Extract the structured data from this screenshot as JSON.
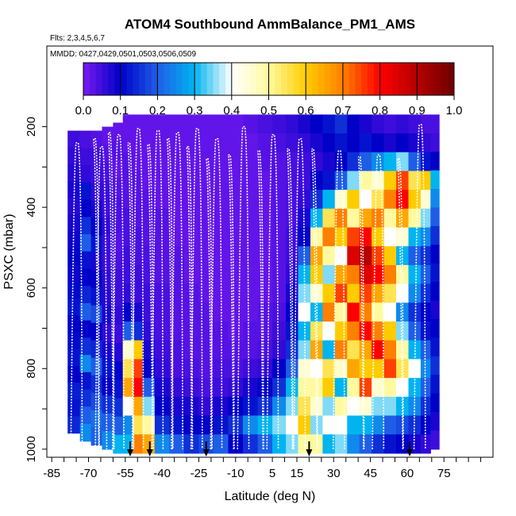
{
  "chart_data": {
    "type": "heatmap",
    "title": "ATOM4 Southbound AmmBalance_PM1_AMS",
    "subtitle_flights": "Flts: 2,3,4,5,6,7",
    "subtitle_dates": "MMDD: 0427,0429,0501,0503,0506,0509",
    "xlabel": "Latitude (deg N)",
    "ylabel": "PSXC (mbar)",
    "xlim": [
      -87,
      95
    ],
    "ylim": [
      1020,
      0
    ],
    "x_ticks": [
      -85,
      -70,
      -55,
      -40,
      -25,
      -10,
      5,
      15,
      30,
      45,
      60,
      75
    ],
    "x_tick_labels": [
      "-85",
      "-70",
      "-55",
      "-40",
      "-25",
      "-10",
      "5",
      "15",
      "30",
      "45",
      "60",
      "75"
    ],
    "y_ticks": [
      200,
      400,
      600,
      800,
      1000
    ],
    "y_tick_labels": [
      "200",
      "400",
      "600",
      "800",
      "1000"
    ],
    "colorbar": {
      "min": 0.0,
      "max": 1.0,
      "ticks": [
        0.0,
        0.1,
        0.2,
        0.3,
        0.4,
        0.5,
        0.6,
        0.7,
        0.8,
        0.9,
        1.0
      ],
      "tick_labels": [
        "0.0",
        "0.1",
        "0.2",
        "0.3",
        "0.4",
        "0.5",
        "0.6",
        "0.7",
        "0.8",
        "0.9",
        "1.0"
      ],
      "colors": [
        "#7a1af0",
        "#0000c8",
        "#1e5ee6",
        "#00b4f0",
        "#ffffff",
        "#fffaa0",
        "#ffcc00",
        "#ff8000",
        "#ff0000",
        "#b40000",
        "#6e0000"
      ]
    },
    "arrows_latitude": [
      -53,
      -45,
      -22,
      20,
      61
    ],
    "profiles": [
      {
        "lat": -75,
        "top": 240
      },
      {
        "lat": -68,
        "top": 230
      },
      {
        "lat": -65,
        "top": 250
      },
      {
        "lat": -62,
        "top": 215
      },
      {
        "lat": -58,
        "top": 220
      },
      {
        "lat": -54,
        "top": 240
      },
      {
        "lat": -50,
        "top": 205
      },
      {
        "lat": -46,
        "top": 245
      },
      {
        "lat": -42,
        "top": 210
      },
      {
        "lat": -38,
        "top": 230
      },
      {
        "lat": -34,
        "top": 215
      },
      {
        "lat": -30,
        "top": 250
      },
      {
        "lat": -26,
        "top": 205
      },
      {
        "lat": -22,
        "top": 280
      },
      {
        "lat": -18,
        "top": 230
      },
      {
        "lat": -13,
        "top": 270
      },
      {
        "lat": -7,
        "top": 200
      },
      {
        "lat": -1,
        "top": 260
      },
      {
        "lat": 5,
        "top": 220
      },
      {
        "lat": 11,
        "top": 255
      },
      {
        "lat": 16,
        "top": 230
      },
      {
        "lat": 21,
        "top": 255
      },
      {
        "lat": 32,
        "top": 260
      },
      {
        "lat": 40,
        "top": 275
      },
      {
        "lat": 48,
        "top": 270
      },
      {
        "lat": 56,
        "top": 280
      },
      {
        "lat": 65,
        "top": 195
      }
    ],
    "columns": [
      {
        "lat": -76,
        "top": 210,
        "bottom": 960,
        "values": [
          0.05,
          0.06,
          0.07,
          0.08,
          0.07,
          0.08,
          0.09,
          0.1,
          0.09,
          0.11,
          0.12,
          0.1,
          0.11,
          0.12,
          0.1,
          0.13,
          0.12,
          0.14
        ]
      },
      {
        "lat": -71,
        "top": 210,
        "bottom": 980,
        "values": [
          0.04,
          0.05,
          0.06,
          0.12,
          0.1,
          0.15,
          0.2,
          0.12,
          0.1,
          0.14,
          0.2,
          0.1,
          0.15,
          0.25,
          0.12,
          0.15,
          0.2,
          0.25
        ]
      },
      {
        "lat": -67,
        "top": 210,
        "bottom": 990,
        "values": [
          0.03,
          0.05,
          0.05,
          0.06,
          0.08,
          0.1,
          0.12,
          0.08,
          0.1,
          0.12,
          0.18,
          0.1,
          0.14,
          0.2,
          0.15,
          0.18,
          0.22,
          0.2
        ]
      },
      {
        "lat": -62,
        "top": 200,
        "bottom": 1000,
        "values": [
          0.02,
          0.03,
          0.04,
          0.05,
          0.05,
          0.06,
          0.05,
          0.05,
          0.06,
          0.07,
          0.08,
          0.06,
          0.08,
          0.12,
          0.1,
          0.15,
          0.2,
          0.25
        ]
      },
      {
        "lat": -58,
        "top": 190,
        "bottom": 1010,
        "values": [
          0.02,
          0.03,
          0.02,
          0.03,
          0.04,
          0.04,
          0.03,
          0.04,
          0.05,
          0.05,
          0.06,
          0.05,
          0.07,
          0.1,
          0.12,
          0.15,
          0.2,
          0.3
        ]
      },
      {
        "lat": -54,
        "top": 170,
        "bottom": 1010,
        "values": [
          0.02,
          0.02,
          0.03,
          0.03,
          0.03,
          0.04,
          0.04,
          0.05,
          0.05,
          0.06,
          0.1,
          0.2,
          0.45,
          0.55,
          0.65,
          0.4,
          0.25,
          0.3
        ]
      },
      {
        "lat": -50,
        "top": 170,
        "bottom": 1010,
        "values": [
          0.02,
          0.02,
          0.02,
          0.03,
          0.03,
          0.03,
          0.04,
          0.04,
          0.05,
          0.05,
          0.08,
          0.15,
          0.6,
          0.75,
          0.8,
          0.65,
          0.55,
          0.7
        ]
      },
      {
        "lat": -46,
        "top": 170,
        "bottom": 1010,
        "values": [
          0.02,
          0.02,
          0.02,
          0.02,
          0.03,
          0.03,
          0.03,
          0.04,
          0.04,
          0.05,
          0.05,
          0.06,
          0.08,
          0.1,
          0.2,
          0.35,
          0.5,
          0.65
        ]
      },
      {
        "lat": -40,
        "top": 170,
        "bottom": 1010,
        "values": [
          0.02,
          0.02,
          0.02,
          0.02,
          0.02,
          0.03,
          0.03,
          0.03,
          0.03,
          0.04,
          0.04,
          0.04,
          0.05,
          0.06,
          0.08,
          0.1,
          0.15,
          0.25
        ]
      },
      {
        "lat": -34,
        "top": 170,
        "bottom": 1010,
        "values": [
          0.02,
          0.02,
          0.02,
          0.02,
          0.02,
          0.02,
          0.02,
          0.03,
          0.03,
          0.03,
          0.03,
          0.03,
          0.04,
          0.04,
          0.06,
          0.08,
          0.12,
          0.2
        ]
      },
      {
        "lat": -28,
        "top": 170,
        "bottom": 1010,
        "values": [
          0.02,
          0.02,
          0.02,
          0.02,
          0.02,
          0.02,
          0.02,
          0.02,
          0.02,
          0.03,
          0.03,
          0.03,
          0.03,
          0.04,
          0.05,
          0.08,
          0.1,
          0.15
        ]
      },
      {
        "lat": -22,
        "top": 170,
        "bottom": 1010,
        "values": [
          0.02,
          0.02,
          0.02,
          0.02,
          0.02,
          0.02,
          0.02,
          0.02,
          0.02,
          0.02,
          0.03,
          0.03,
          0.03,
          0.03,
          0.04,
          0.06,
          0.1,
          0.18
        ]
      },
      {
        "lat": -16,
        "top": 170,
        "bottom": 1010,
        "values": [
          0.02,
          0.02,
          0.02,
          0.02,
          0.02,
          0.02,
          0.02,
          0.02,
          0.02,
          0.02,
          0.02,
          0.03,
          0.03,
          0.04,
          0.05,
          0.08,
          0.12,
          0.2
        ]
      },
      {
        "lat": -10,
        "top": 170,
        "bottom": 1010,
        "values": [
          0.02,
          0.02,
          0.02,
          0.02,
          0.02,
          0.02,
          0.02,
          0.02,
          0.02,
          0.02,
          0.02,
          0.02,
          0.03,
          0.04,
          0.06,
          0.1,
          0.15,
          0.1
        ]
      },
      {
        "lat": -4,
        "top": 170,
        "bottom": 1010,
        "values": [
          0.03,
          0.02,
          0.02,
          0.02,
          0.02,
          0.02,
          0.02,
          0.02,
          0.02,
          0.02,
          0.02,
          0.03,
          0.03,
          0.05,
          0.08,
          0.12,
          0.25,
          0.15
        ]
      },
      {
        "lat": 2,
        "top": 170,
        "bottom": 1010,
        "values": [
          0.04,
          0.03,
          0.03,
          0.02,
          0.02,
          0.02,
          0.02,
          0.02,
          0.02,
          0.02,
          0.03,
          0.03,
          0.04,
          0.06,
          0.1,
          0.15,
          0.3,
          0.2
        ]
      },
      {
        "lat": 8,
        "top": 170,
        "bottom": 1010,
        "values": [
          0.05,
          0.04,
          0.03,
          0.03,
          0.03,
          0.03,
          0.03,
          0.03,
          0.03,
          0.03,
          0.04,
          0.05,
          0.06,
          0.1,
          0.15,
          0.25,
          0.35,
          0.3
        ]
      },
      {
        "lat": 13,
        "top": 170,
        "bottom": 1010,
        "values": [
          0.06,
          0.05,
          0.04,
          0.04,
          0.04,
          0.04,
          0.05,
          0.05,
          0.06,
          0.08,
          0.1,
          0.12,
          0.15,
          0.2,
          0.3,
          0.35,
          0.4,
          0.35
        ]
      },
      {
        "lat": 18,
        "top": 170,
        "bottom": 1010,
        "values": [
          0.08,
          0.06,
          0.05,
          0.05,
          0.06,
          0.08,
          0.1,
          0.2,
          0.3,
          0.35,
          0.4,
          0.3,
          0.35,
          0.45,
          0.5,
          0.55,
          0.6,
          0.5
        ]
      },
      {
        "lat": 23,
        "top": 170,
        "bottom": 1010,
        "values": [
          0.1,
          0.08,
          0.06,
          0.1,
          0.15,
          0.3,
          0.5,
          0.65,
          0.6,
          0.45,
          0.3,
          0.55,
          0.65,
          0.4,
          0.5,
          0.45,
          0.35,
          0.5
        ]
      },
      {
        "lat": 28,
        "top": 170,
        "bottom": 1010,
        "values": [
          0.12,
          0.1,
          0.08,
          0.12,
          0.3,
          0.55,
          0.7,
          0.5,
          0.35,
          0.6,
          0.7,
          0.4,
          0.3,
          0.55,
          0.6,
          0.35,
          0.4,
          0.3
        ]
      },
      {
        "lat": 33,
        "top": 170,
        "bottom": 1010,
        "values": [
          0.15,
          0.12,
          0.1,
          0.2,
          0.45,
          0.7,
          0.6,
          0.4,
          0.65,
          0.75,
          0.5,
          0.6,
          0.7,
          0.45,
          0.3,
          0.5,
          0.4,
          0.35
        ]
      },
      {
        "lat": 38,
        "top": 170,
        "bottom": 1010,
        "values": [
          0.1,
          0.1,
          0.15,
          0.35,
          0.6,
          0.5,
          0.75,
          0.85,
          0.7,
          0.6,
          0.8,
          0.7,
          0.55,
          0.65,
          0.5,
          0.4,
          0.3,
          0.25
        ]
      },
      {
        "lat": 43,
        "top": 170,
        "bottom": 1010,
        "values": [
          0.08,
          0.12,
          0.2,
          0.5,
          0.4,
          0.65,
          0.8,
          0.9,
          0.85,
          0.75,
          0.7,
          0.8,
          0.65,
          0.6,
          0.75,
          0.45,
          0.3,
          0.2
        ]
      },
      {
        "lat": 48,
        "top": 170,
        "bottom": 1010,
        "values": [
          0.06,
          0.1,
          0.25,
          0.45,
          0.55,
          0.7,
          0.6,
          0.75,
          0.8,
          0.65,
          0.5,
          0.7,
          0.8,
          0.6,
          0.45,
          0.35,
          0.25,
          0.15
        ]
      },
      {
        "lat": 53,
        "top": 170,
        "bottom": 1010,
        "values": [
          0.05,
          0.08,
          0.3,
          0.6,
          0.7,
          0.5,
          0.4,
          0.6,
          0.7,
          0.55,
          0.4,
          0.6,
          0.7,
          0.75,
          0.5,
          0.35,
          0.2,
          0.12
        ]
      },
      {
        "lat": 58,
        "top": 170,
        "bottom": 1010,
        "values": [
          0.06,
          0.1,
          0.35,
          0.75,
          0.8,
          0.65,
          0.45,
          0.3,
          0.5,
          0.4,
          0.25,
          0.35,
          0.5,
          0.55,
          0.4,
          0.3,
          0.18,
          0.1
        ]
      },
      {
        "lat": 63,
        "top": 170,
        "bottom": 1010,
        "values": [
          0.05,
          0.08,
          0.2,
          0.55,
          0.6,
          0.5,
          0.3,
          0.2,
          0.3,
          0.25,
          0.15,
          0.2,
          0.3,
          0.4,
          0.3,
          0.25,
          0.15,
          0.08
        ]
      },
      {
        "lat": 68,
        "top": 170,
        "bottom": 1010,
        "values": [
          0.04,
          0.06,
          0.12,
          0.6,
          0.45,
          0.35,
          0.25,
          0.15,
          0.2,
          0.15,
          0.1,
          0.12,
          0.2,
          0.25,
          0.2,
          0.15,
          0.1,
          0.06
        ]
      },
      {
        "lat": 71,
        "top": 170,
        "bottom": 1000,
        "values": [
          0.04,
          0.05,
          0.1,
          0.3,
          0.25,
          0.2,
          0.15,
          0.1,
          0.12,
          0.1,
          0.08,
          0.1,
          0.12,
          0.15,
          0.12,
          0.1,
          0.08,
          0.05
        ]
      }
    ]
  }
}
